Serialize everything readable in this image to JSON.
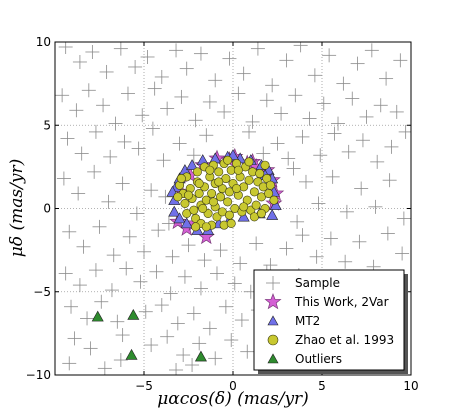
{
  "chart_data": {
    "type": "scatter",
    "xlabel": "μαcos(δ) (mas/yr)",
    "ylabel": "μδ (mas/yr)",
    "xlim": [
      -10,
      10
    ],
    "ylim": [
      -10,
      10
    ],
    "xticks": [
      -5,
      0,
      5,
      10
    ],
    "yticks": [
      -10,
      -5,
      0,
      5,
      10
    ],
    "grid": true,
    "legend_position": "lower-right",
    "series": [
      {
        "name": "Sample",
        "marker": "plus",
        "color": "#8a8a8a",
        "points": [
          [
            -9.4,
            9.7
          ],
          [
            -8.6,
            8.8
          ],
          [
            -7.9,
            9.4
          ],
          [
            -7.1,
            8.2
          ],
          [
            -6.3,
            9.6
          ],
          [
            -5.5,
            8.5
          ],
          [
            -4.8,
            9.1
          ],
          [
            -4.0,
            7.9
          ],
          [
            -3.2,
            9.5
          ],
          [
            -2.6,
            8.4
          ],
          [
            -1.8,
            9.3
          ],
          [
            -1.0,
            7.7
          ],
          [
            -0.2,
            9.0
          ],
          [
            0.6,
            8.1
          ],
          [
            1.4,
            9.6
          ],
          [
            2.2,
            7.4
          ],
          [
            3.0,
            8.9
          ],
          [
            3.8,
            9.8
          ],
          [
            4.6,
            8.0
          ],
          [
            5.4,
            9.2
          ],
          [
            6.2,
            7.5
          ],
          [
            7.0,
            8.7
          ],
          [
            7.8,
            9.5
          ],
          [
            8.6,
            7.8
          ],
          [
            9.4,
            8.9
          ],
          [
            -9.6,
            6.8
          ],
          [
            -8.8,
            5.9
          ],
          [
            -8.1,
            7.1
          ],
          [
            -7.3,
            6.2
          ],
          [
            -6.6,
            5.1
          ],
          [
            -5.9,
            6.9
          ],
          [
            -5.1,
            5.6
          ],
          [
            -4.4,
            7.2
          ],
          [
            -3.7,
            6.0
          ],
          [
            -2.9,
            6.7
          ],
          [
            -2.1,
            5.3
          ],
          [
            -1.3,
            6.4
          ],
          [
            -0.5,
            5.8
          ],
          [
            0.3,
            6.9
          ],
          [
            1.1,
            5.2
          ],
          [
            1.9,
            6.5
          ],
          [
            2.7,
            5.7
          ],
          [
            3.5,
            6.8
          ],
          [
            4.3,
            5.4
          ],
          [
            5.1,
            6.3
          ],
          [
            5.9,
            5.1
          ],
          [
            6.7,
            6.6
          ],
          [
            7.5,
            5.5
          ],
          [
            8.3,
            6.2
          ],
          [
            9.2,
            5.8
          ],
          [
            -9.3,
            4.2
          ],
          [
            -8.5,
            3.3
          ],
          [
            -7.7,
            4.6
          ],
          [
            -6.9,
            3.1
          ],
          [
            -6.1,
            4.0
          ],
          [
            -5.3,
            3.6
          ],
          [
            -4.5,
            4.8
          ],
          [
            -3.9,
            2.9
          ],
          [
            -1.5,
            4.4
          ],
          [
            0.9,
            4.6
          ],
          [
            2.5,
            3.9
          ],
          [
            3.9,
            4.3
          ],
          [
            4.9,
            3.2
          ],
          [
            5.7,
            4.5
          ],
          [
            6.5,
            3.4
          ],
          [
            7.3,
            4.1
          ],
          [
            8.1,
            2.8
          ],
          [
            8.9,
            3.7
          ],
          [
            9.7,
            4.6
          ],
          [
            -9.5,
            1.8
          ],
          [
            -8.7,
            0.9
          ],
          [
            -7.8,
            2.2
          ],
          [
            -7.0,
            0.4
          ],
          [
            -6.2,
            1.5
          ],
          [
            -5.4,
            -0.3
          ],
          [
            -4.6,
            1.1
          ],
          [
            4.1,
            1.6
          ],
          [
            4.8,
            0.3
          ],
          [
            5.6,
            1.9
          ],
          [
            6.4,
            -0.2
          ],
          [
            7.2,
            1.2
          ],
          [
            8.0,
            0.1
          ],
          [
            8.8,
            1.7
          ],
          [
            9.6,
            -0.6
          ],
          [
            -9.2,
            -1.4
          ],
          [
            -8.4,
            -2.3
          ],
          [
            -7.5,
            -1.1
          ],
          [
            -6.7,
            -2.8
          ],
          [
            -5.8,
            -1.7
          ],
          [
            -5.0,
            -2.6
          ],
          [
            -4.2,
            -1.3
          ],
          [
            -3.4,
            -2.9
          ],
          [
            -2.5,
            -2.2
          ],
          [
            -1.6,
            -3.1
          ],
          [
            -0.7,
            -2.5
          ],
          [
            0.4,
            -3.3
          ],
          [
            1.3,
            -2.1
          ],
          [
            2.1,
            -3.4
          ],
          [
            3.0,
            -2.4
          ],
          [
            3.9,
            -1.6
          ],
          [
            4.7,
            -2.9
          ],
          [
            5.5,
            -1.8
          ],
          [
            6.3,
            -3.2
          ],
          [
            7.1,
            -2.0
          ],
          [
            7.9,
            -3.5
          ],
          [
            8.7,
            -1.5
          ],
          [
            9.5,
            -2.7
          ],
          [
            -9.4,
            -3.9
          ],
          [
            -8.6,
            -4.6
          ],
          [
            -7.7,
            -3.7
          ],
          [
            -6.8,
            -4.9
          ],
          [
            -6.0,
            -3.6
          ],
          [
            -5.2,
            -4.4
          ],
          [
            -4.3,
            -3.8
          ],
          [
            -3.5,
            -5.1
          ],
          [
            -2.7,
            -4.1
          ],
          [
            -1.8,
            -4.8
          ],
          [
            -0.9,
            -3.9
          ],
          [
            0.1,
            -4.5
          ],
          [
            1.0,
            -5.0
          ],
          [
            1.9,
            -3.8
          ],
          [
            2.8,
            -4.7
          ],
          [
            3.7,
            -4.0
          ],
          [
            4.6,
            -5.2
          ],
          [
            6.1,
            -4.3
          ],
          [
            7.0,
            -5.1
          ],
          [
            -9.1,
            -5.9
          ],
          [
            -8.2,
            -6.6
          ],
          [
            -7.4,
            -5.6
          ],
          [
            -6.5,
            -6.8
          ],
          [
            -4.9,
            -6.2
          ],
          [
            -4.0,
            -5.8
          ],
          [
            -3.1,
            -6.9
          ],
          [
            -2.2,
            -6.3
          ],
          [
            -1.3,
            -7.2
          ],
          [
            -0.4,
            -5.9
          ],
          [
            0.5,
            -6.7
          ],
          [
            1.4,
            -6.1
          ],
          [
            2.3,
            -7.0
          ],
          [
            3.2,
            -6.4
          ],
          [
            4.1,
            -7.3
          ],
          [
            5.0,
            -5.8
          ],
          [
            -8.9,
            -7.8
          ],
          [
            -8.0,
            -8.4
          ],
          [
            -6.2,
            -7.6
          ],
          [
            -4.6,
            -8.2
          ],
          [
            -3.7,
            -7.7
          ],
          [
            -2.8,
            -8.8
          ],
          [
            -1.9,
            -8.1
          ],
          [
            -1.0,
            -9.0
          ],
          [
            -0.1,
            -7.9
          ],
          [
            0.8,
            -8.6
          ],
          [
            1.7,
            -9.3
          ],
          [
            2.6,
            -8.0
          ],
          [
            3.5,
            -8.9
          ],
          [
            4.4,
            -9.5
          ],
          [
            -9.2,
            -9.3
          ],
          [
            -7.2,
            -9.6
          ],
          [
            -6.3,
            -9.1
          ],
          [
            -3.2,
            -9.7
          ],
          [
            -2.3,
            -9.4
          ],
          [
            6.0,
            -8.5
          ],
          [
            7.2,
            -7.9
          ],
          [
            8.4,
            -8.8
          ],
          [
            -3.0,
            3.9
          ],
          [
            -2.2,
            3.2
          ],
          [
            1.7,
            3.3
          ],
          [
            3.1,
            3.0
          ],
          [
            -3.8,
            0.7
          ],
          [
            -3.6,
            -0.9
          ],
          [
            3.6,
            -0.8
          ],
          [
            3.4,
            2.4
          ]
        ]
      },
      {
        "name": "This Work, 2Var",
        "marker": "star",
        "color": "#d45fd4",
        "points": [
          [
            -3.1,
            -0.8
          ],
          [
            -2.6,
            -1.2
          ],
          [
            -1.5,
            -1.7
          ],
          [
            -2.4,
            2.0
          ],
          [
            -1.7,
            2.6
          ],
          [
            -0.9,
            3.0
          ],
          [
            0.1,
            3.1
          ],
          [
            1.1,
            2.8
          ],
          [
            1.9,
            2.3
          ],
          [
            2.2,
            1.7
          ],
          [
            2.4,
            0.9
          ],
          [
            2.3,
            0.3
          ],
          [
            -0.2,
            2.9
          ],
          [
            0.8,
            2.7
          ],
          [
            -2.9,
            1.0
          ],
          [
            -2.2,
            -0.9
          ],
          [
            1.3,
            2.5
          ]
        ]
      },
      {
        "name": "MT2",
        "marker": "triangle",
        "color": "#7070e8",
        "points": [
          [
            -3.3,
            0.5
          ],
          [
            -3.2,
            1.3
          ],
          [
            -3.0,
            1.8
          ],
          [
            -2.7,
            2.3
          ],
          [
            -2.3,
            2.6
          ],
          [
            -1.7,
            2.9
          ],
          [
            -1.0,
            3.0
          ],
          [
            -0.3,
            3.1
          ],
          [
            0.4,
            3.0
          ],
          [
            1.0,
            2.9
          ],
          [
            1.6,
            2.6
          ],
          [
            2.0,
            2.3
          ],
          [
            2.2,
            1.8
          ],
          [
            2.3,
            1.0
          ],
          [
            2.4,
            0.2
          ],
          [
            2.2,
            -0.4
          ],
          [
            -3.3,
            -0.2
          ],
          [
            -3.0,
            -0.6
          ],
          [
            -2.6,
            -0.9
          ],
          [
            -2.0,
            -1.3
          ],
          [
            -1.4,
            -1.3
          ],
          [
            -0.8,
            -0.9
          ],
          [
            -0.2,
            -0.7
          ],
          [
            0.6,
            -0.5
          ],
          [
            1.5,
            -0.3
          ],
          [
            -3.4,
            1.0
          ],
          [
            1.8,
            2.0
          ],
          [
            0.0,
            3.2
          ]
        ]
      },
      {
        "name": "Zhao et al. 1993",
        "marker": "circle",
        "color": "#c8c830",
        "points": [
          [
            -3.0,
            1.4
          ],
          [
            -2.8,
            0.9
          ],
          [
            -2.7,
            0.3
          ],
          [
            -2.6,
            -0.3
          ],
          [
            -2.6,
            1.9
          ],
          [
            -2.4,
            1.2
          ],
          [
            -2.3,
            0.6
          ],
          [
            -2.2,
            -0.1
          ],
          [
            -2.1,
            -0.6
          ],
          [
            -2.0,
            2.2
          ],
          [
            -2.0,
            1.6
          ],
          [
            -1.9,
            0.9
          ],
          [
            -1.8,
            0.2
          ],
          [
            -1.8,
            -0.9
          ],
          [
            -1.6,
            2.5
          ],
          [
            -1.6,
            1.3
          ],
          [
            -1.5,
            0.5
          ],
          [
            -1.4,
            -0.3
          ],
          [
            -1.3,
            1.9
          ],
          [
            -1.2,
            -1.0
          ],
          [
            -1.2,
            0.9
          ],
          [
            -1.1,
            2.6
          ],
          [
            -1.0,
            0.1
          ],
          [
            -1.0,
            1.5
          ],
          [
            -0.9,
            -0.5
          ],
          [
            -0.8,
            2.2
          ],
          [
            -0.7,
            0.7
          ],
          [
            -0.6,
            1.2
          ],
          [
            -0.6,
            -0.2
          ],
          [
            -0.5,
            2.7
          ],
          [
            -0.4,
            1.8
          ],
          [
            -0.3,
            0.4
          ],
          [
            -0.2,
            -0.4
          ],
          [
            -0.2,
            1.0
          ],
          [
            -0.1,
            2.3
          ],
          [
            0.0,
            1.5
          ],
          [
            0.1,
            0.0
          ],
          [
            0.2,
            2.7
          ],
          [
            0.3,
            0.8
          ],
          [
            0.4,
            1.9
          ],
          [
            0.5,
            -0.2
          ],
          [
            0.6,
            1.3
          ],
          [
            0.7,
            2.5
          ],
          [
            0.8,
            0.5
          ],
          [
            0.9,
            1.7
          ],
          [
            1.0,
            -0.1
          ],
          [
            1.1,
            2.2
          ],
          [
            1.2,
            1.0
          ],
          [
            1.3,
            0.2
          ],
          [
            1.4,
            1.6
          ],
          [
            1.5,
            2.1
          ],
          [
            1.6,
            0.7
          ],
          [
            1.7,
            1.3
          ],
          [
            1.8,
            0.0
          ],
          [
            1.9,
            1.8
          ],
          [
            2.0,
            0.9
          ],
          [
            1.2,
            -0.5
          ],
          [
            -0.5,
            -1.0
          ],
          [
            -1.9,
            1.5
          ],
          [
            0.3,
            2.3
          ],
          [
            -2.5,
            0.8
          ],
          [
            -1.3,
            2.3
          ],
          [
            0.9,
            2.8
          ],
          [
            2.1,
            1.4
          ],
          [
            -0.8,
            1.6
          ],
          [
            0.6,
            0.1
          ],
          [
            -1.5,
            -1.1
          ],
          [
            -3.1,
            0.7
          ],
          [
            1.8,
            2.6
          ],
          [
            -2.1,
            -1.1
          ],
          [
            -0.1,
            -0.9
          ],
          [
            2.3,
            0.5
          ],
          [
            -1.1,
            0.4
          ],
          [
            0.2,
            1.2
          ],
          [
            -0.3,
            2.9
          ],
          [
            1.6,
            -0.3
          ],
          [
            -2.9,
            1.8
          ],
          [
            -1.7,
            0.0
          ]
        ]
      },
      {
        "name": "Outliers",
        "marker": "triangle",
        "color": "#2e8b2e",
        "points": [
          [
            -7.6,
            -6.5
          ],
          [
            -5.6,
            -6.4
          ],
          [
            -5.7,
            -8.8
          ],
          [
            -1.8,
            -8.9
          ]
        ]
      }
    ]
  }
}
